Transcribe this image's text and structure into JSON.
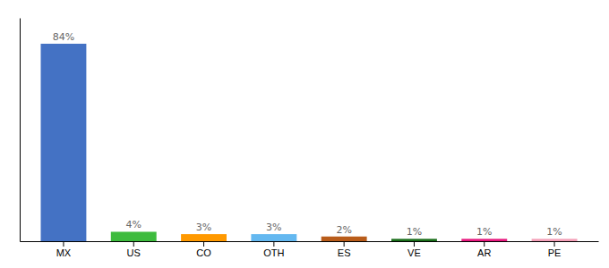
{
  "chart_data": {
    "type": "bar",
    "categories": [
      "MX",
      "US",
      "CO",
      "OTH",
      "ES",
      "VE",
      "AR",
      "PE"
    ],
    "values": [
      84,
      4,
      3,
      3,
      2,
      1,
      1,
      1
    ],
    "value_labels": [
      "84%",
      "4%",
      "3%",
      "3%",
      "2%",
      "1%",
      "1%",
      "1%"
    ],
    "colors": [
      "#4472c4",
      "#3dbb3d",
      "#ff9900",
      "#64b8f0",
      "#b85c1a",
      "#1a6e1a",
      "#e8197e",
      "#f4a0b8"
    ],
    "ylim": [
      0,
      95
    ],
    "data_labels": true,
    "tick_labels": "x"
  }
}
